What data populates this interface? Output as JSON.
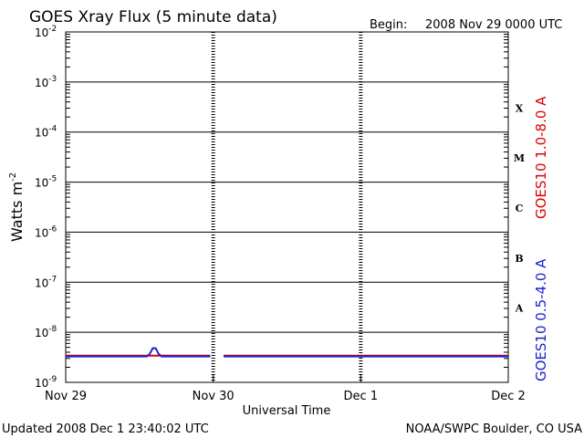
{
  "header": {
    "title": "GOES Xray Flux (5 minute data)",
    "begin_label": "Begin:",
    "begin_value": "2008 Nov 29 0000 UTC"
  },
  "footer": {
    "updated": "Updated 2008 Dec  1 23:40:02 UTC",
    "credit": "NOAA/SWPC Boulder, CO USA"
  },
  "colors": {
    "long_channel": "#dd0000",
    "short_channel": "#1a22cc",
    "grid": "#000000"
  },
  "chart_data": {
    "type": "line",
    "title": "GOES Xray Flux (5 minute data)",
    "xlabel": "Universal Time",
    "ylabel": "Watts m",
    "ylabel_superscript": "-2",
    "ylog": true,
    "ylim": [
      1e-09,
      0.01
    ],
    "y_exponents": [
      -2,
      -3,
      -4,
      -5,
      -6,
      -7,
      -8,
      -9
    ],
    "y_tick_base": "10",
    "x_range_days": [
      0,
      3
    ],
    "x_ticks": [
      {
        "day": 0,
        "label": "Nov 29"
      },
      {
        "day": 1,
        "label": "Nov 30"
      },
      {
        "day": 2,
        "label": "Dec 1"
      },
      {
        "day": 3,
        "label": "Dec 2"
      }
    ],
    "flare_classes": [
      {
        "label": "X",
        "exp": -4
      },
      {
        "label": "M",
        "exp": -5
      },
      {
        "label": "C",
        "exp": -6
      },
      {
        "label": "B",
        "exp": -7
      },
      {
        "label": "A",
        "exp": -8
      }
    ],
    "grid": true,
    "series": [
      {
        "name": "GOES10 1.0-8.0 A",
        "color": "#dd0000",
        "segments": [
          {
            "x": [
              0.0,
              0.98
            ],
            "y": [
              3.4e-09,
              3.4e-09
            ]
          },
          {
            "x": [
              1.07,
              3.0
            ],
            "y": [
              3.4e-09,
              3.4e-09
            ]
          }
        ]
      },
      {
        "name": "GOES10 0.5-4.0 A",
        "color": "#1a22cc",
        "segments": [
          {
            "x": [
              0.0,
              0.55,
              0.57,
              0.59,
              0.61,
              0.63,
              0.65,
              0.98
            ],
            "y": [
              3.3e-09,
              3.3e-09,
              3.7e-09,
              4.8e-09,
              4.8e-09,
              3.7e-09,
              3.3e-09,
              3.3e-09
            ]
          },
          {
            "x": [
              1.07,
              3.0
            ],
            "y": [
              3.3e-09,
              3.3e-09
            ]
          }
        ]
      }
    ]
  }
}
